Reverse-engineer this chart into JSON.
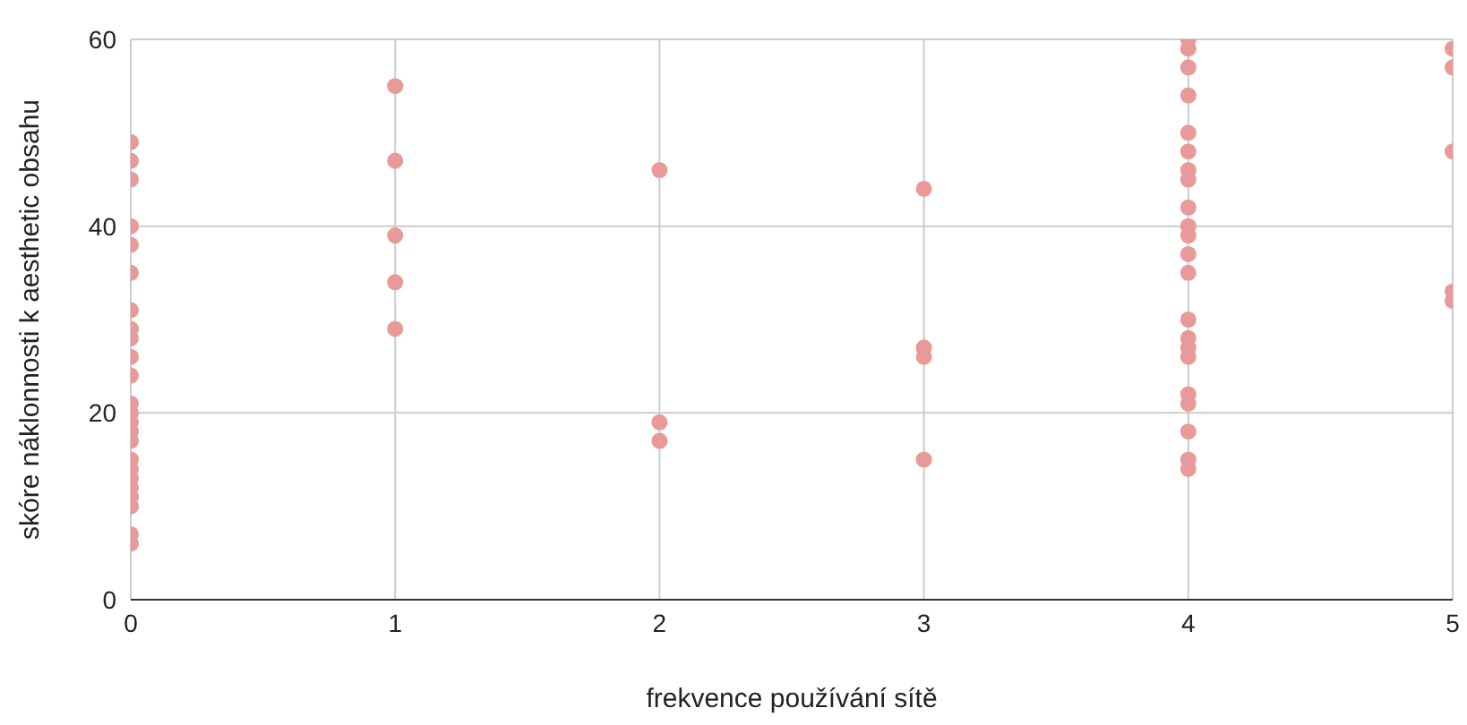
{
  "chart_data": {
    "type": "scatter",
    "xlabel": "frekvence používání sítě",
    "ylabel": "skóre náklonnosti k aesthetic obsahu",
    "x": [
      0,
      0,
      0,
      0,
      0,
      0,
      0,
      0,
      0,
      0,
      0,
      0,
      0,
      0,
      0,
      0,
      0,
      0,
      0,
      0,
      0,
      0,
      0,
      0,
      1,
      1,
      1,
      1,
      1,
      2,
      2,
      2,
      3,
      3,
      3,
      3,
      4,
      4,
      4,
      4,
      4,
      4,
      4,
      4,
      4,
      4,
      4,
      4,
      4,
      4,
      4,
      4,
      4,
      4,
      4,
      4,
      4,
      4,
      5,
      5,
      5,
      5,
      5
    ],
    "series": [
      {
        "color": "#e89a9a",
        "values": [
          49,
          47,
          45,
          40,
          38,
          35,
          31,
          29,
          28,
          26,
          24,
          21,
          20,
          19,
          18,
          17,
          15,
          14,
          13,
          12,
          11,
          10,
          7,
          6,
          55,
          47,
          39,
          34,
          29,
          46,
          19,
          17,
          44,
          27,
          26,
          15,
          60,
          59,
          57,
          54,
          50,
          48,
          46,
          45,
          42,
          40,
          39,
          37,
          35,
          30,
          28,
          27,
          26,
          22,
          21,
          18,
          15,
          14,
          59,
          57,
          48,
          33,
          32
        ]
      }
    ],
    "xlim": [
      0,
      5
    ],
    "xticks": [
      0,
      1,
      2,
      3,
      4,
      5
    ],
    "ylim": [
      0,
      60
    ],
    "yticks": [
      0,
      20,
      40,
      60
    ],
    "grid": true,
    "marker": "circle",
    "legend": false
  }
}
